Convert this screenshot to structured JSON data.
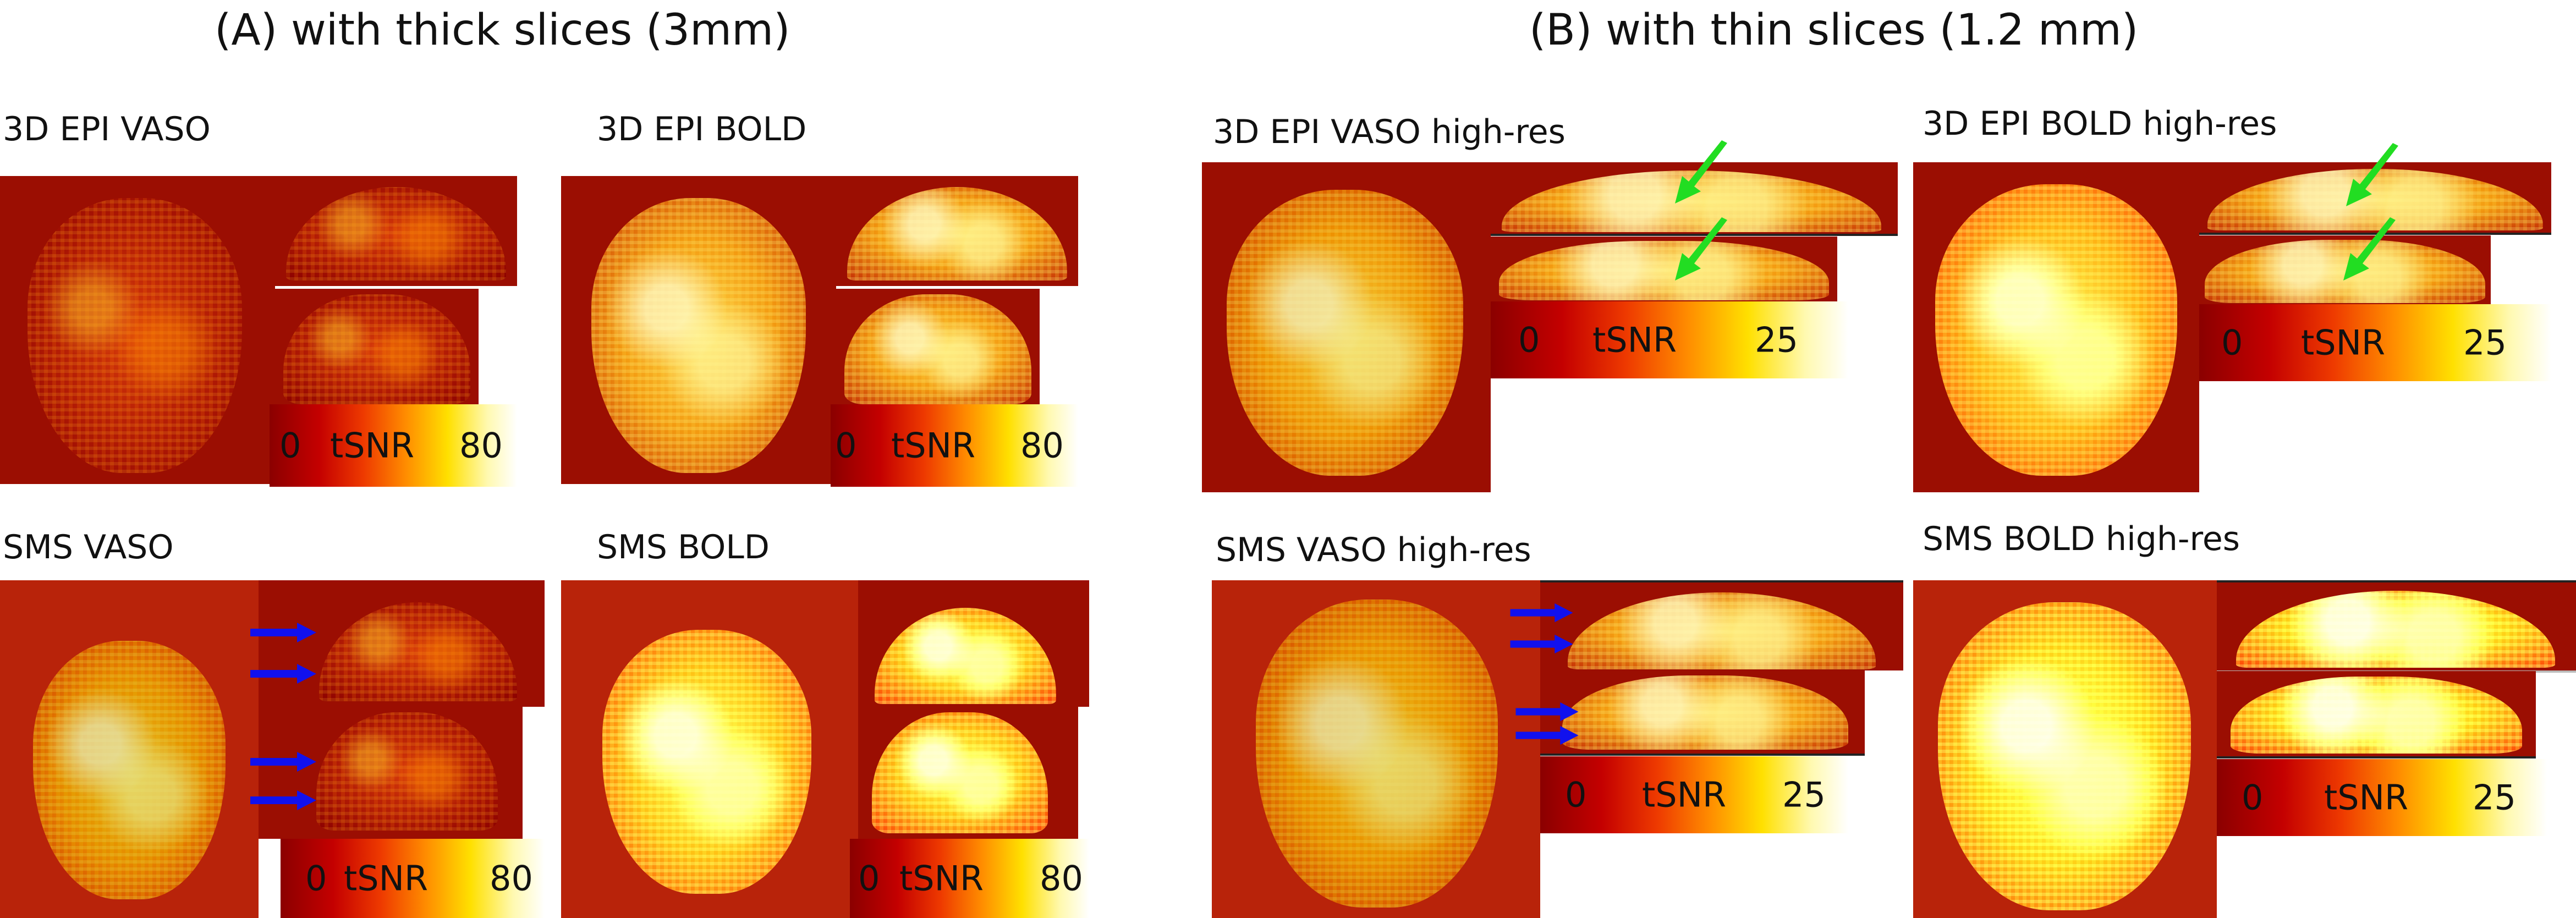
{
  "titles": {
    "section_a": "(A) with thick slices (3mm)",
    "section_b": "(B) with thin slices (1.2 mm)"
  },
  "panels": {
    "a_3d_vaso": {
      "title": "3D EPI VASO"
    },
    "a_3d_bold": {
      "title": "3D EPI BOLD"
    },
    "a_sms_vaso": {
      "title": "SMS VASO"
    },
    "a_sms_bold": {
      "title": "SMS BOLD"
    },
    "b_3d_vaso": {
      "title": "3D EPI VASO high-res"
    },
    "b_3d_bold": {
      "title": "3D EPI BOLD high-res"
    },
    "b_sms_vaso": {
      "title": "SMS VASO high-res"
    },
    "b_sms_bold": {
      "title": "SMS BOLD high-res"
    }
  },
  "colorbars": {
    "thick": {
      "min": "0",
      "label": "tSNR",
      "max": "80"
    },
    "thin": {
      "min": "0",
      "label": "tSNR",
      "max": "25"
    }
  },
  "colors": {
    "colormap": [
      "#8b0000",
      "#ff8c00",
      "#ffe000",
      "#ffffff"
    ],
    "arrow_green": "#22dd22",
    "arrow_blue": "#1111ee"
  },
  "icons": {
    "green_arrow": "arrow-icon",
    "blue_arrow": "arrow-icon"
  }
}
